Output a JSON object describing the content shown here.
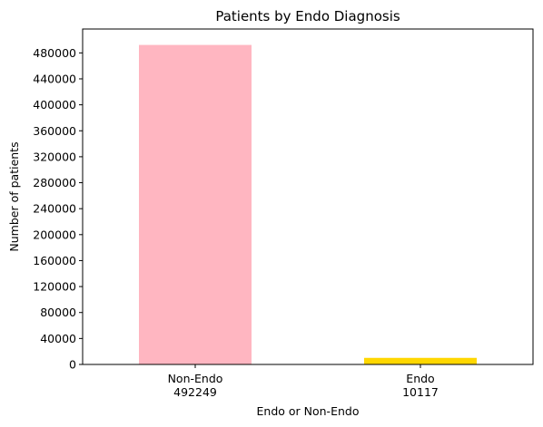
{
  "chart_data": {
    "type": "bar",
    "title": "Patients by Endo Diagnosis",
    "xlabel": "Endo or Non-Endo",
    "ylabel": "Number of patients",
    "categories": [
      "Non-Endo",
      "Endo"
    ],
    "category_labels": [
      [
        "Non-Endo",
        "492249"
      ],
      [
        "Endo",
        "10117"
      ]
    ],
    "values": [
      492249,
      10117
    ],
    "colors": [
      "#ffb6c1",
      "#ffd700"
    ],
    "ylim": [
      0,
      516787
    ],
    "yticks": [
      0,
      40000,
      80000,
      120000,
      160000,
      200000,
      240000,
      280000,
      320000,
      360000,
      400000,
      440000,
      480000
    ],
    "grid": false,
    "legend": "none"
  }
}
